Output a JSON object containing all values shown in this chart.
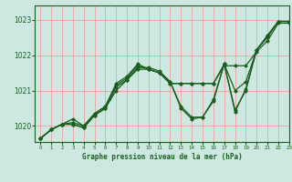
{
  "bg_color": "#cce8e0",
  "grid_color": "#f0a0a0",
  "line_color": "#1a5e20",
  "title": "Graphe pression niveau de la mer (hPa)",
  "xlim": [
    -0.5,
    23
  ],
  "ylim": [
    1019.55,
    1023.4
  ],
  "yticks": [
    1020,
    1021,
    1022,
    1023
  ],
  "xticks": [
    0,
    1,
    2,
    3,
    4,
    5,
    6,
    7,
    8,
    9,
    10,
    11,
    12,
    13,
    14,
    15,
    16,
    17,
    18,
    19,
    20,
    21,
    22,
    23
  ],
  "series": [
    [
      1019.65,
      1019.9,
      1020.05,
      1020.05,
      1019.95,
      1020.3,
      1020.5,
      1021.1,
      1021.3,
      1021.65,
      1021.65,
      1021.55,
      1021.25,
      1020.55,
      1020.25,
      1020.25,
      1020.75,
      1021.75,
      1020.45,
      1021.0,
      1022.15,
      1022.5,
      1022.95,
      1022.95
    ],
    [
      1019.65,
      1019.9,
      1020.05,
      1020.05,
      1019.95,
      1020.3,
      1020.5,
      1021.0,
      1021.3,
      1021.6,
      1021.6,
      1021.5,
      1021.2,
      1021.2,
      1021.2,
      1021.2,
      1021.2,
      1021.7,
      1021.7,
      1021.7,
      1022.1,
      1022.4,
      1022.9,
      1022.9
    ],
    [
      1019.65,
      1019.9,
      1020.05,
      1020.1,
      1020.0,
      1020.35,
      1020.55,
      1021.15,
      1021.35,
      1021.7,
      1021.6,
      1021.5,
      1021.2,
      1021.2,
      1021.2,
      1021.2,
      1021.2,
      1021.75,
      1021.0,
      1021.25,
      1022.15,
      1022.55,
      1022.95,
      1022.95
    ],
    [
      1019.65,
      1019.9,
      1020.05,
      1020.2,
      1020.0,
      1020.35,
      1020.55,
      1021.2,
      1021.4,
      1021.75,
      1021.6,
      1021.5,
      1021.25,
      1020.5,
      1020.2,
      1020.25,
      1020.7,
      1021.75,
      1020.4,
      1021.05,
      1022.15,
      1022.55,
      1022.95,
      1022.95
    ]
  ]
}
